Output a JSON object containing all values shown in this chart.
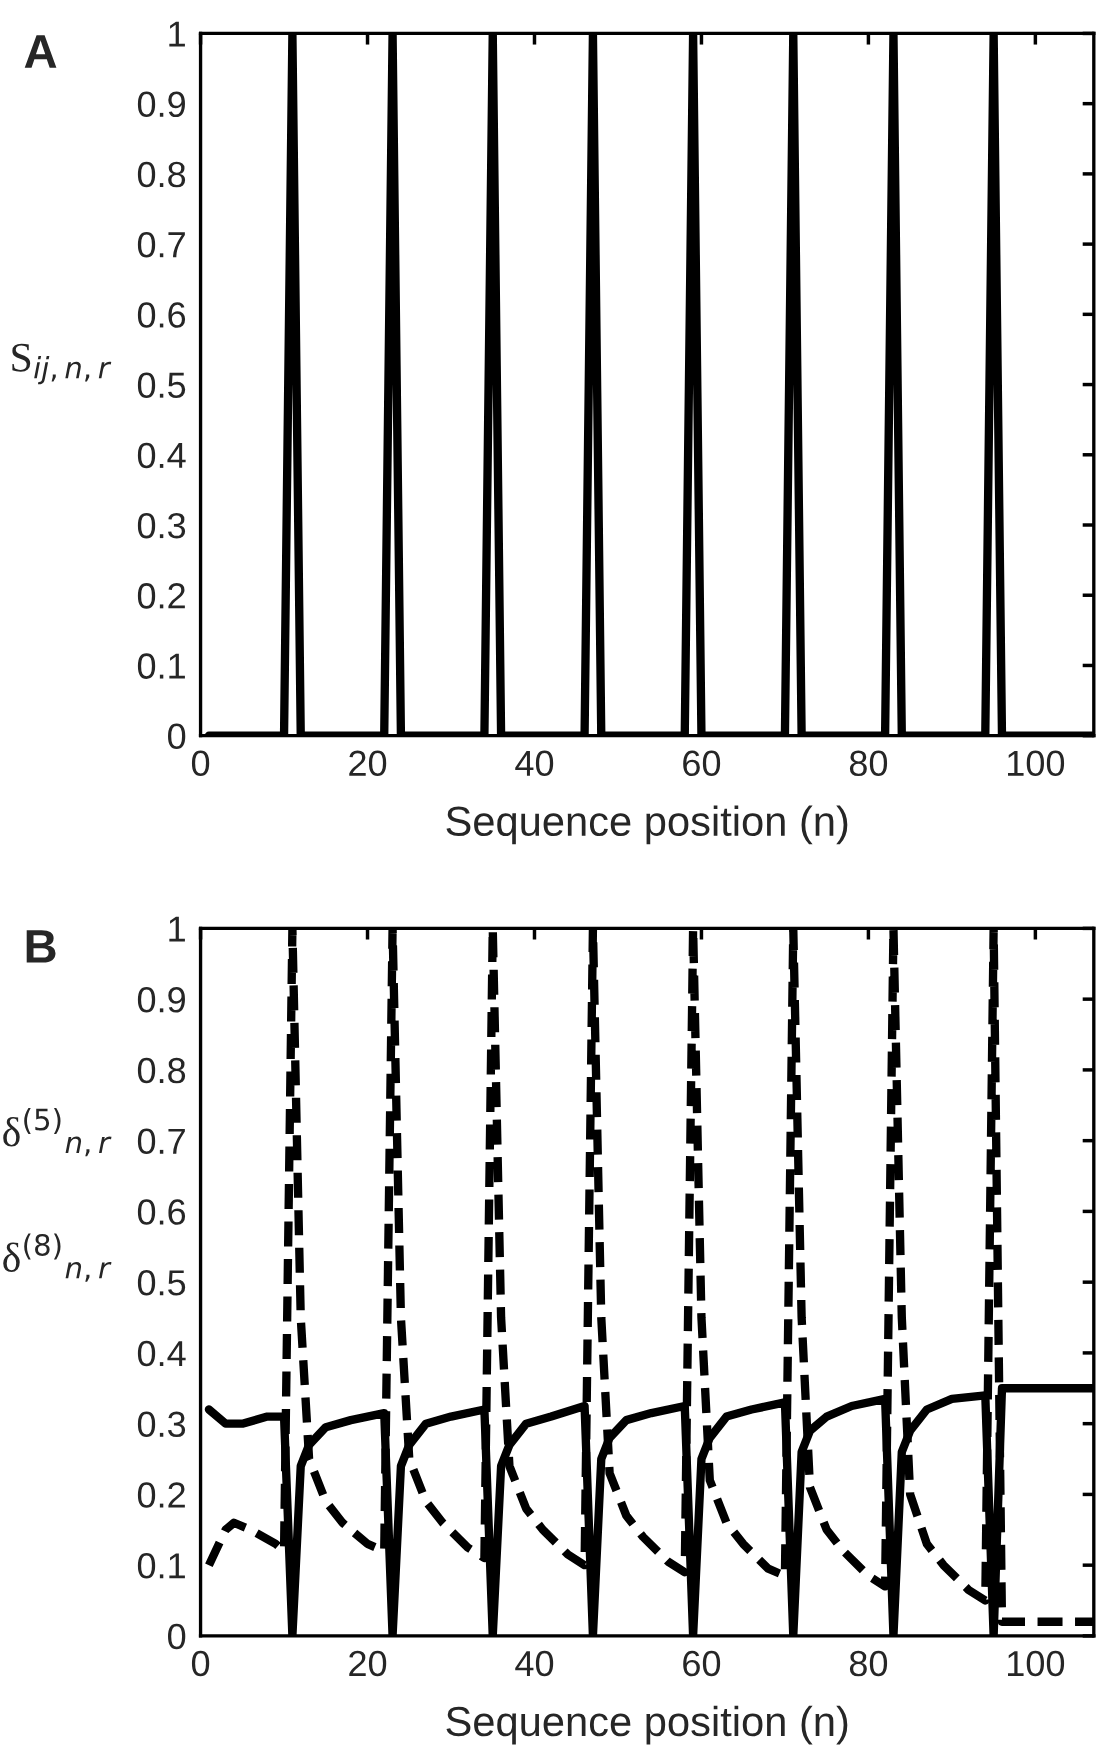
{
  "chart_data": [
    {
      "type": "line",
      "title": "A",
      "xlabel": "Sequence position (n)",
      "ylabel": "S$_{ij,n,r}$",
      "xlim": [
        0,
        107
      ],
      "ylim": [
        0,
        1
      ],
      "xticks": [
        0,
        20,
        40,
        60,
        80,
        100
      ],
      "yticks": [
        0,
        0.1,
        0.2,
        0.3,
        0.4,
        0.5,
        0.6,
        0.7,
        0.8,
        0.9,
        1
      ],
      "grid": false,
      "marker": "none",
      "series": [
        {
          "color": "#000000",
          "line_style": "solid",
          "x": [
            1,
            10,
            11,
            12,
            22,
            23,
            24,
            34,
            35,
            36,
            46,
            47,
            48,
            58,
            59,
            60,
            70,
            71,
            72,
            82,
            83,
            84,
            94,
            95,
            96,
            107
          ],
          "values": [
            0,
            0,
            1,
            0,
            0,
            1,
            0,
            0,
            1,
            0,
            0,
            1,
            0,
            0,
            1,
            0,
            0,
            1,
            0,
            0,
            1,
            0,
            0,
            1,
            0,
            0
          ]
        }
      ]
    },
    {
      "type": "line",
      "title": "B",
      "xlabel": "Sequence position (n)",
      "ylabel": "δ$^{(5)}$$_{n,r}$\nδ$^{(8)}$$_{n,r}$",
      "xlim": [
        0,
        107
      ],
      "ylim": [
        0,
        1
      ],
      "xticks": [
        0,
        20,
        40,
        60,
        80,
        100
      ],
      "yticks": [
        0,
        0.1,
        0.2,
        0.3,
        0.4,
        0.5,
        0.6,
        0.7,
        0.8,
        0.9,
        1
      ],
      "grid": false,
      "marker": "none",
      "series": [
        {
          "color": "#000000",
          "line_style": "solid",
          "x": [
            1,
            3,
            5,
            8,
            10,
            11,
            12,
            13,
            15,
            18,
            22,
            23,
            24,
            25,
            27,
            30,
            34,
            35,
            36,
            37,
            39,
            42,
            46,
            47,
            48,
            49,
            51,
            54,
            58,
            59,
            60,
            61,
            63,
            66,
            70,
            71,
            72,
            73,
            75,
            78,
            82,
            83,
            84,
            85,
            87,
            90,
            94,
            95,
            96,
            107
          ],
          "values": [
            0.32,
            0.3,
            0.3,
            0.31,
            0.31,
            0,
            0.24,
            0.27,
            0.295,
            0.305,
            0.315,
            0,
            0.24,
            0.27,
            0.3,
            0.31,
            0.32,
            0,
            0.24,
            0.27,
            0.3,
            0.31,
            0.325,
            0,
            0.25,
            0.28,
            0.305,
            0.315,
            0.325,
            0,
            0.25,
            0.28,
            0.31,
            0.32,
            0.33,
            0,
            0.26,
            0.29,
            0.31,
            0.325,
            0.335,
            0,
            0.26,
            0.29,
            0.32,
            0.335,
            0.34,
            0,
            0.35,
            0.35
          ]
        },
        {
          "color": "#000000",
          "line_style": "dashed",
          "x": [
            1,
            3,
            4,
            6,
            9,
            10,
            11,
            12,
            13,
            15,
            17,
            20,
            22,
            23,
            24,
            25,
            27,
            29,
            32,
            34,
            35,
            36,
            37,
            39,
            41,
            44,
            46,
            47,
            48,
            49,
            51,
            53,
            56,
            58,
            59,
            60,
            61,
            63,
            65,
            68,
            70,
            71,
            72,
            73,
            75,
            77,
            80,
            82,
            83,
            84,
            85,
            87,
            89,
            92,
            94,
            95,
            96,
            107
          ],
          "values": [
            0.1,
            0.15,
            0.16,
            0.15,
            0.13,
            0.12,
            1,
            0.45,
            0.25,
            0.19,
            0.16,
            0.13,
            0.12,
            1,
            0.45,
            0.25,
            0.19,
            0.16,
            0.125,
            0.11,
            1,
            0.45,
            0.24,
            0.18,
            0.15,
            0.115,
            0.1,
            1,
            0.45,
            0.23,
            0.17,
            0.14,
            0.105,
            0.09,
            1,
            0.45,
            0.22,
            0.16,
            0.13,
            0.095,
            0.085,
            1,
            0.45,
            0.21,
            0.15,
            0.12,
            0.085,
            0.07,
            1,
            0.45,
            0.2,
            0.13,
            0.1,
            0.065,
            0.05,
            1,
            0.02,
            0.02
          ]
        }
      ]
    }
  ]
}
